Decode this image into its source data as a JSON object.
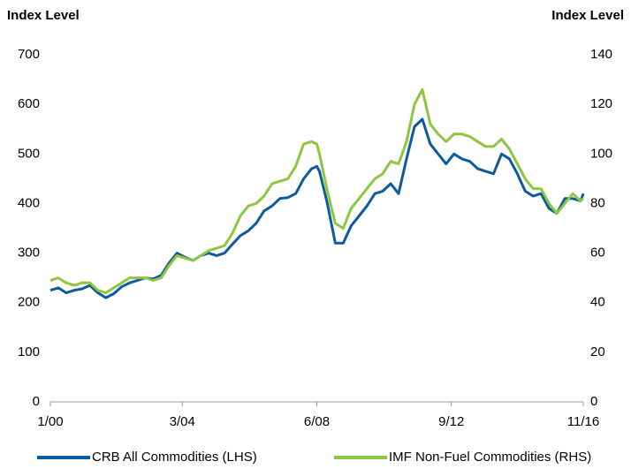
{
  "chart_data": {
    "type": "line",
    "y_label": "Index Level",
    "y2_label": "Index Level",
    "x": [
      0,
      3,
      6,
      9,
      12,
      15,
      18,
      21,
      24,
      27,
      30,
      33,
      36,
      39,
      42,
      45,
      48,
      51,
      54,
      57,
      60,
      63,
      66,
      69,
      72,
      75,
      78,
      81,
      84,
      87,
      90,
      93,
      96,
      99,
      101,
      102,
      105,
      108,
      111,
      114,
      117,
      120,
      123,
      126,
      129,
      132,
      135,
      138,
      141,
      144,
      147,
      150,
      153,
      156,
      159,
      162,
      165,
      168,
      171,
      174,
      177,
      180,
      183,
      186,
      189,
      192,
      195,
      198,
      201,
      202
    ],
    "xlim": [
      0,
      202
    ],
    "xticks": [
      {
        "value": 0,
        "label": "1/00"
      },
      {
        "value": 50,
        "label": "3/04"
      },
      {
        "value": 101,
        "label": "6/08"
      },
      {
        "value": 152,
        "label": "9/12"
      },
      {
        "value": 202,
        "label": "11/16"
      }
    ],
    "ylim": [
      0,
      700
    ],
    "yticks": [
      0,
      100,
      200,
      300,
      400,
      500,
      600,
      700
    ],
    "y2lim": [
      0,
      140
    ],
    "y2ticks": [
      0,
      20,
      40,
      60,
      80,
      100,
      120,
      140
    ],
    "grid": false,
    "legend": "bottom",
    "series": [
      {
        "name": "CRB All Commodities (LHS)",
        "color": "#0d5a9c",
        "values": [
          225,
          230,
          220,
          225,
          228,
          235,
          220,
          210,
          218,
          232,
          240,
          245,
          250,
          248,
          255,
          280,
          300,
          292,
          285,
          295,
          300,
          295,
          300,
          318,
          335,
          345,
          360,
          385,
          395,
          410,
          412,
          420,
          450,
          470,
          475,
          465,
          400,
          320,
          320,
          355,
          375,
          395,
          420,
          425,
          440,
          420,
          490,
          555,
          570,
          520,
          500,
          480,
          500,
          490,
          485,
          470,
          465,
          460,
          500,
          490,
          460,
          425,
          415,
          420,
          390,
          380,
          410,
          410,
          405,
          420
        ]
      },
      {
        "name": "IMF Non-Fuel Commodities (RHS)",
        "color": "#8dc63f",
        "axis": "y2",
        "values": [
          49,
          50,
          48,
          47,
          48,
          48,
          45,
          44,
          46,
          48,
          50,
          50,
          50,
          49,
          50,
          55,
          59,
          58,
          57,
          59,
          61,
          62,
          63,
          68,
          75,
          79,
          80,
          83,
          88,
          89,
          90,
          95,
          104,
          105,
          104,
          100,
          85,
          72,
          70,
          78,
          82,
          86,
          90,
          92,
          97,
          96,
          105,
          120,
          126,
          112,
          108,
          105,
          108,
          108,
          107,
          105,
          103,
          103,
          106,
          102,
          96,
          90,
          86,
          86,
          80,
          76,
          80,
          84,
          81,
          82
        ]
      }
    ]
  }
}
